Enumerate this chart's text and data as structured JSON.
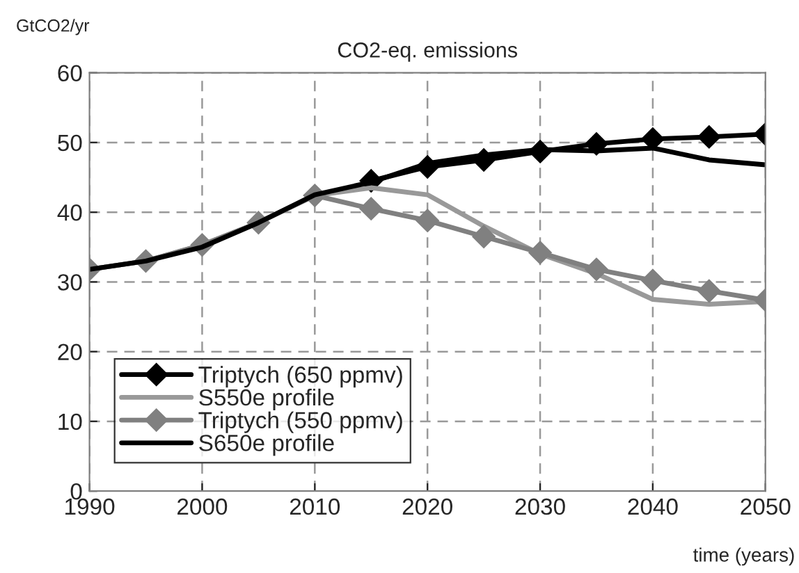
{
  "chart_data": {
    "type": "line",
    "title": "CO2-eq. emissions",
    "ylabel": "GtCO2/yr",
    "xlabel": "time (years)",
    "x": [
      1990,
      1995,
      2000,
      2005,
      2010,
      2015,
      2020,
      2025,
      2030,
      2035,
      2040,
      2045,
      2050
    ],
    "series": [
      {
        "name": "Triptych (650 ppmv)",
        "color": "#000000",
        "marker": "diamond",
        "values": [
          null,
          null,
          null,
          null,
          null,
          44.5,
          46.5,
          47.5,
          48.7,
          49.8,
          50.5,
          50.8,
          51.2
        ]
      },
      {
        "name": "S550e profile",
        "color": "#999999",
        "marker": "none",
        "values": [
          31.8,
          33,
          35.3,
          38.5,
          42.4,
          43.5,
          42.5,
          38,
          34,
          31.2,
          27.5,
          26.8,
          27.2
        ]
      },
      {
        "name": "Triptych (550 ppmv)",
        "color": "#808080",
        "marker": "diamond",
        "values": [
          31.8,
          33,
          35.3,
          38.5,
          42.4,
          40.5,
          38.8,
          36.5,
          34.2,
          31.8,
          30.2,
          28.7,
          27.4
        ]
      },
      {
        "name": "S650e profile",
        "color": "#000000",
        "marker": "none",
        "values": [
          31.8,
          33,
          35,
          38.5,
          42.5,
          44.3,
          47,
          48.2,
          49,
          48.8,
          49.2,
          47.5,
          46.8
        ]
      }
    ],
    "xlim": [
      1990,
      2050
    ],
    "xticks": [
      1990,
      2000,
      2010,
      2020,
      2030,
      2040,
      2050
    ],
    "ylim": [
      0,
      60
    ],
    "yticks": [
      0,
      10,
      20,
      30,
      40,
      50,
      60
    ],
    "grid": true,
    "legend": "bottom left",
    "line_style": "solid"
  }
}
